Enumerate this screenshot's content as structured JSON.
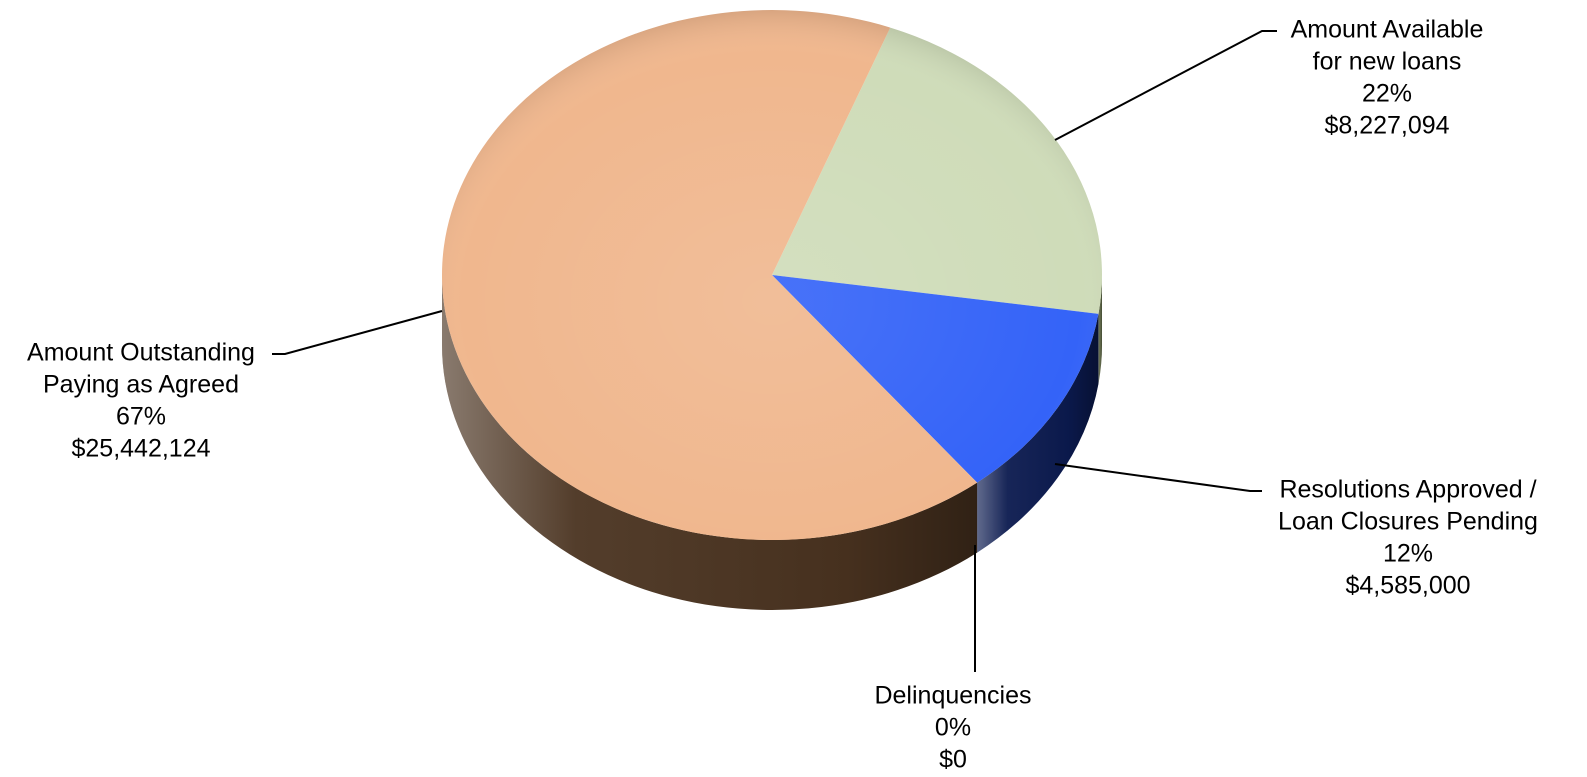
{
  "chart_data": {
    "type": "pie",
    "title": "",
    "slices": [
      {
        "label_lines": [
          "Amount Available",
          "for new loans"
        ],
        "percent_label": "22%",
        "amount_label": "$8,227,094",
        "value": 8227094,
        "color": "#cfdcb9",
        "side_color": "#5d6647"
      },
      {
        "label_lines": [
          "Resolutions Approved /",
          "Loan Closures Pending"
        ],
        "percent_label": "12%",
        "amount_label": "$4,585,000",
        "value": 4585000,
        "color": "#3463f8",
        "side_color": "#0b1a4f"
      },
      {
        "label_lines": [
          "Delinquencies"
        ],
        "percent_label": "0%",
        "amount_label": "$0",
        "value": 0,
        "color": "#c9c9c9",
        "side_color": "#555555"
      },
      {
        "label_lines": [
          "Amount Outstanding",
          "Paying as Agreed"
        ],
        "percent_label": "67%",
        "amount_label": "$25,442,124",
        "value": 25442124,
        "color": "#f0b78e",
        "side_color": "#4a3320"
      }
    ]
  }
}
